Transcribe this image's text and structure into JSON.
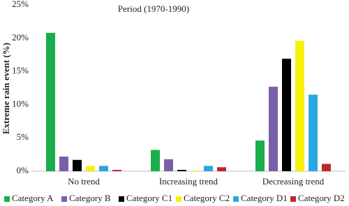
{
  "chart_data": {
    "type": "bar",
    "title": "Period (1970-1990)",
    "y_label": "Extreme rain event (%)",
    "categories": [
      "No trend",
      "Increasing trend",
      "Decreasing trend"
    ],
    "series": [
      {
        "name": "Category A",
        "color": "#1aad4b",
        "values": [
          20.8,
          3.2,
          4.6
        ]
      },
      {
        "name": "Category B",
        "color": "#7b5ea8",
        "values": [
          2.2,
          1.8,
          12.7
        ]
      },
      {
        "name": "Category C1",
        "color": "#000000",
        "values": [
          1.7,
          0.2,
          16.9
        ]
      },
      {
        "name": "Category C2",
        "color": "#f5f20a",
        "values": [
          0.8,
          0.1,
          19.6
        ]
      },
      {
        "name": "Category D1",
        "color": "#29a8e0",
        "values": [
          0.8,
          0.8,
          11.5
        ]
      },
      {
        "name": "Category D2",
        "color": "#c0272d",
        "values": [
          0.2,
          0.6,
          1.1
        ]
      }
    ],
    "ylim": [
      0,
      25
    ],
    "yticks": [
      {
        "value": 0,
        "label": "0%"
      },
      {
        "value": 5,
        "label": "5%"
      },
      {
        "value": 10,
        "label": "10%"
      },
      {
        "value": 15,
        "label": "15%"
      },
      {
        "value": 20,
        "label": "20%"
      },
      {
        "value": 25,
        "label": "25%"
      }
    ],
    "grid": false
  }
}
